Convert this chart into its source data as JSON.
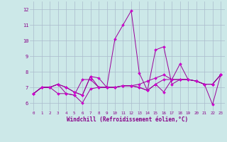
{
  "xlabel": "Windchill (Refroidissement éolien,°C)",
  "ylabel": "",
  "background_color": "#cce8e8",
  "grid_color": "#aabbcc",
  "line_color": "#990099",
  "marker_color": "#cc00cc",
  "xlim": [
    -0.5,
    23.5
  ],
  "ylim": [
    5.5,
    12.5
  ],
  "yticks": [
    6,
    7,
    8,
    9,
    10,
    11,
    12
  ],
  "xticks": [
    0,
    1,
    2,
    3,
    4,
    5,
    6,
    7,
    8,
    9,
    10,
    11,
    12,
    13,
    14,
    15,
    16,
    17,
    18,
    19,
    20,
    21,
    22,
    23
  ],
  "series": [
    [
      6.6,
      7.0,
      7.0,
      7.2,
      7.0,
      6.7,
      6.5,
      7.7,
      7.6,
      7.0,
      10.1,
      11.0,
      11.9,
      7.9,
      6.8,
      9.4,
      9.6,
      7.2,
      7.5,
      7.5,
      7.4,
      7.2,
      5.9,
      7.8
    ],
    [
      6.6,
      7.0,
      7.0,
      7.2,
      6.6,
      6.5,
      6.0,
      6.9,
      7.0,
      7.0,
      7.0,
      7.1,
      7.1,
      7.0,
      6.8,
      7.2,
      6.7,
      7.5,
      8.5,
      7.5,
      7.4,
      7.2,
      7.2,
      7.8
    ],
    [
      6.6,
      7.0,
      7.0,
      6.6,
      6.6,
      6.5,
      7.5,
      7.5,
      7.0,
      7.0,
      7.0,
      7.1,
      7.1,
      7.0,
      6.8,
      7.2,
      7.5,
      7.5,
      7.5,
      7.5,
      7.4,
      7.2,
      7.2,
      7.8
    ],
    [
      6.6,
      7.0,
      7.0,
      7.2,
      7.0,
      6.7,
      6.5,
      7.7,
      7.0,
      7.0,
      7.0,
      7.1,
      7.1,
      7.2,
      7.4,
      7.6,
      7.8,
      7.5,
      7.5,
      7.5,
      7.4,
      7.2,
      7.2,
      7.8
    ]
  ]
}
